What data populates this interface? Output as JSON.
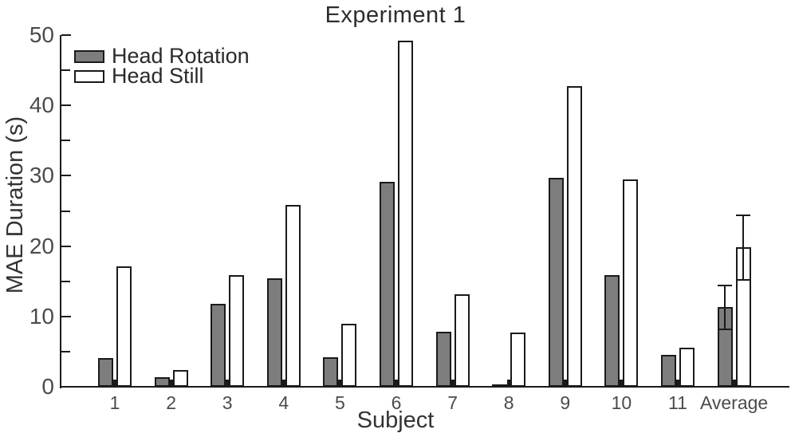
{
  "page": {
    "background": "#ffffff"
  },
  "chart_data": {
    "type": "bar",
    "title": "Experiment 1",
    "xlabel": "Subject",
    "ylabel": "MAE Duration (s)",
    "ylim": [
      0,
      50
    ],
    "yticks_major": [
      0,
      10,
      20,
      30,
      40,
      50
    ],
    "yticks_minor": [
      5,
      15,
      25,
      35,
      45
    ],
    "grid": false,
    "legend_position": "top-left-inside",
    "categories": [
      "1",
      "2",
      "3",
      "4",
      "5",
      "6",
      "7",
      "8",
      "9",
      "10",
      "11",
      "Average"
    ],
    "series": [
      {
        "name": "Head Rotation",
        "fill": "#7d7d7d",
        "border": "#1a1a1a",
        "values": [
          4.1,
          1.4,
          11.8,
          15.4,
          4.2,
          29.1,
          7.8,
          0.3,
          29.7,
          15.9,
          4.5,
          11.3
        ],
        "average_error": 3.1
      },
      {
        "name": "Head Still",
        "fill": "#ffffff",
        "border": "#1a1a1a",
        "values": [
          17.1,
          2.4,
          15.9,
          25.8,
          9.0,
          49.2,
          13.2,
          7.7,
          42.8,
          29.5,
          5.5,
          19.8
        ],
        "average_error": 4.6
      }
    ],
    "error_bars_on": "Average",
    "colors": {
      "axis": "#1a1a1a",
      "tick_label": "#4b4b4b",
      "label_text": "#333333"
    }
  }
}
